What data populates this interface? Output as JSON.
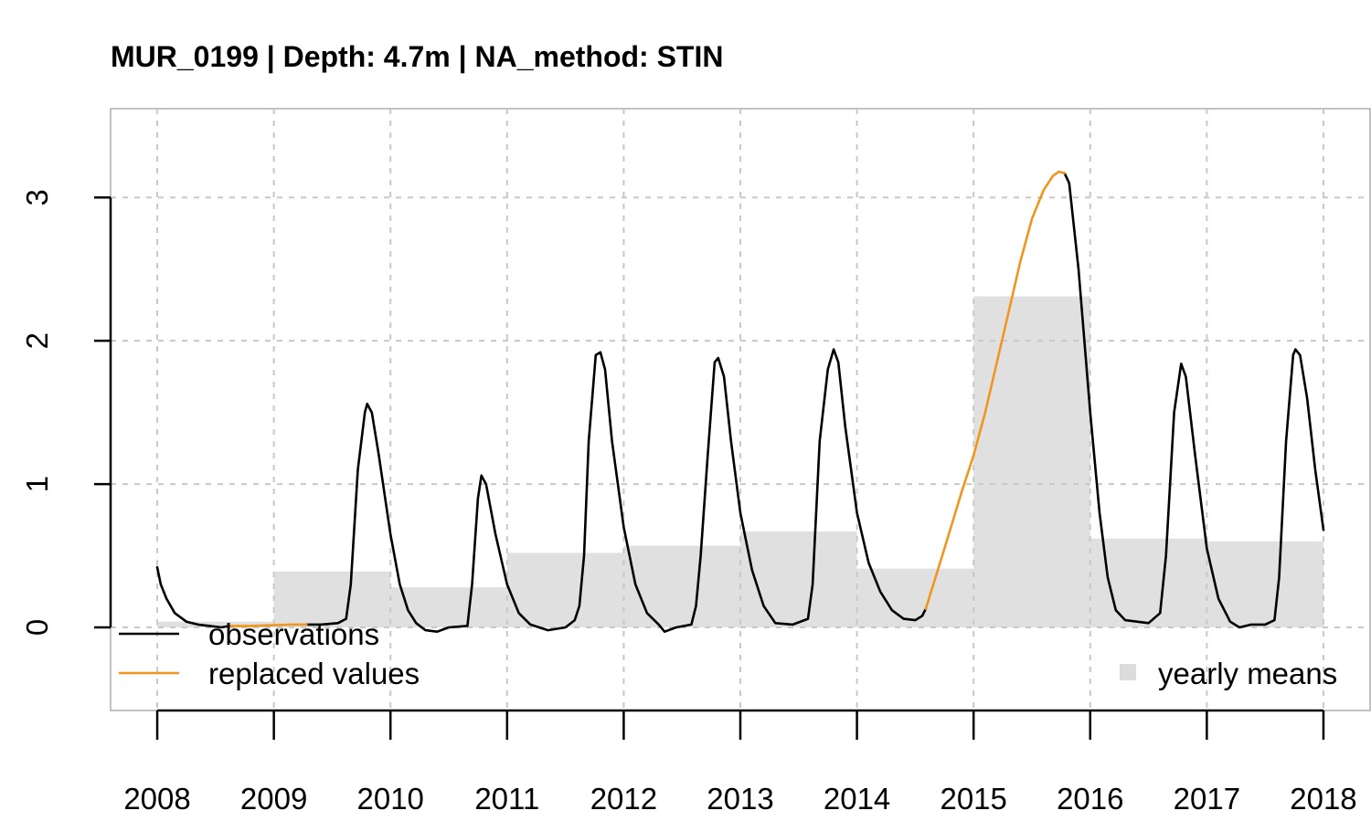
{
  "chart_data": {
    "type": "line",
    "title": "MUR_0199 | Depth: 4.7m | NA_method: STIN",
    "xlabel": "",
    "ylabel": "",
    "x_ticks": [
      "2008",
      "2009",
      "2010",
      "2011",
      "2012",
      "2013",
      "2014",
      "2015",
      "2016",
      "2017",
      "2018"
    ],
    "y_ticks": [
      "0",
      "1",
      "2",
      "3"
    ],
    "xlim": [
      2007.6,
      2018.4
    ],
    "ylim": [
      -0.58,
      3.62
    ],
    "grid": true,
    "legend_left": {
      "position": "bottom-left",
      "entries": [
        {
          "label": "observations",
          "color": "#000000"
        },
        {
          "label": "replaced values",
          "color": "#f0961e"
        }
      ]
    },
    "legend_right": {
      "position": "bottom-right",
      "entries": [
        {
          "label": "yearly means",
          "color": "#dcdcdc"
        }
      ]
    },
    "yearly_means": {
      "color": "#e0e0e0",
      "bars": [
        {
          "start": 2008,
          "end": 2009,
          "value": 0.04
        },
        {
          "start": 2009,
          "end": 2010,
          "value": 0.39
        },
        {
          "start": 2010,
          "end": 2011,
          "value": 0.28
        },
        {
          "start": 2011,
          "end": 2012,
          "value": 0.52
        },
        {
          "start": 2012,
          "end": 2013,
          "value": 0.57
        },
        {
          "start": 2013,
          "end": 2014,
          "value": 0.67
        },
        {
          "start": 2014,
          "end": 2015,
          "value": 0.41
        },
        {
          "start": 2015,
          "end": 2016,
          "value": 2.31
        },
        {
          "start": 2016,
          "end": 2017,
          "value": 0.62
        },
        {
          "start": 2017,
          "end": 2018,
          "value": 0.6
        }
      ]
    },
    "series": [
      {
        "name": "observations",
        "color": "#000000",
        "segments": [
          [
            [
              2008.0,
              0.42
            ],
            [
              2008.03,
              0.3
            ],
            [
              2008.08,
              0.2
            ],
            [
              2008.15,
              0.1
            ],
            [
              2008.25,
              0.04
            ],
            [
              2008.35,
              0.02
            ],
            [
              2008.45,
              0.01
            ],
            [
              2008.55,
              0.0
            ],
            [
              2008.62,
              0.01
            ]
          ],
          [
            [
              2009.28,
              0.02
            ],
            [
              2009.4,
              0.02
            ],
            [
              2009.55,
              0.03
            ],
            [
              2009.62,
              0.06
            ],
            [
              2009.66,
              0.3
            ],
            [
              2009.72,
              1.1
            ],
            [
              2009.78,
              1.5
            ],
            [
              2009.8,
              1.56
            ],
            [
              2009.84,
              1.5
            ],
            [
              2009.9,
              1.2
            ],
            [
              2010.0,
              0.65
            ],
            [
              2010.08,
              0.3
            ],
            [
              2010.15,
              0.12
            ],
            [
              2010.22,
              0.03
            ],
            [
              2010.3,
              -0.02
            ],
            [
              2010.4,
              -0.03
            ],
            [
              2010.5,
              0.0
            ],
            [
              2010.66,
              0.01
            ],
            [
              2010.7,
              0.3
            ],
            [
              2010.75,
              0.9
            ],
            [
              2010.78,
              1.06
            ],
            [
              2010.82,
              1.0
            ],
            [
              2010.9,
              0.65
            ],
            [
              2011.0,
              0.3
            ],
            [
              2011.1,
              0.1
            ],
            [
              2011.2,
              0.02
            ],
            [
              2011.35,
              -0.02
            ],
            [
              2011.5,
              0.0
            ],
            [
              2011.58,
              0.05
            ],
            [
              2011.62,
              0.15
            ],
            [
              2011.66,
              0.5
            ],
            [
              2011.7,
              1.3
            ],
            [
              2011.76,
              1.9
            ],
            [
              2011.8,
              1.92
            ],
            [
              2011.84,
              1.8
            ],
            [
              2011.9,
              1.3
            ],
            [
              2012.0,
              0.7
            ],
            [
              2012.1,
              0.3
            ],
            [
              2012.2,
              0.1
            ],
            [
              2012.3,
              0.02
            ],
            [
              2012.35,
              -0.03
            ],
            [
              2012.45,
              0.0
            ],
            [
              2012.58,
              0.02
            ],
            [
              2012.62,
              0.15
            ],
            [
              2012.66,
              0.5
            ],
            [
              2012.72,
              1.2
            ],
            [
              2012.78,
              1.85
            ],
            [
              2012.81,
              1.88
            ],
            [
              2012.86,
              1.75
            ],
            [
              2012.92,
              1.3
            ],
            [
              2013.0,
              0.8
            ],
            [
              2013.1,
              0.4
            ],
            [
              2013.2,
              0.15
            ],
            [
              2013.3,
              0.03
            ],
            [
              2013.45,
              0.02
            ],
            [
              2013.58,
              0.06
            ],
            [
              2013.62,
              0.3
            ],
            [
              2013.68,
              1.3
            ],
            [
              2013.75,
              1.8
            ],
            [
              2013.8,
              1.94
            ],
            [
              2013.84,
              1.85
            ],
            [
              2013.9,
              1.4
            ],
            [
              2014.0,
              0.8
            ],
            [
              2014.1,
              0.45
            ],
            [
              2014.2,
              0.25
            ],
            [
              2014.3,
              0.12
            ],
            [
              2014.4,
              0.06
            ],
            [
              2014.5,
              0.05
            ],
            [
              2014.56,
              0.08
            ],
            [
              2014.59,
              0.13
            ]
          ],
          [
            [
              2015.78,
              3.17
            ],
            [
              2015.82,
              3.1
            ],
            [
              2015.9,
              2.5
            ],
            [
              2016.0,
              1.5
            ],
            [
              2016.08,
              0.8
            ],
            [
              2016.15,
              0.35
            ],
            [
              2016.22,
              0.12
            ],
            [
              2016.3,
              0.05
            ],
            [
              2016.4,
              0.04
            ],
            [
              2016.5,
              0.03
            ],
            [
              2016.6,
              0.1
            ],
            [
              2016.65,
              0.5
            ],
            [
              2016.72,
              1.5
            ],
            [
              2016.78,
              1.84
            ],
            [
              2016.82,
              1.75
            ],
            [
              2016.9,
              1.2
            ],
            [
              2017.0,
              0.55
            ],
            [
              2017.1,
              0.2
            ],
            [
              2017.2,
              0.04
            ],
            [
              2017.28,
              0.0
            ],
            [
              2017.38,
              0.02
            ],
            [
              2017.5,
              0.02
            ],
            [
              2017.58,
              0.05
            ],
            [
              2017.62,
              0.35
            ],
            [
              2017.68,
              1.3
            ],
            [
              2017.74,
              1.9
            ],
            [
              2017.76,
              1.94
            ],
            [
              2017.8,
              1.9
            ],
            [
              2017.86,
              1.6
            ],
            [
              2017.93,
              1.1
            ],
            [
              2018.0,
              0.68
            ]
          ]
        ]
      },
      {
        "name": "replaced values",
        "color": "#f0961e",
        "segments": [
          [
            [
              2008.62,
              0.01
            ],
            [
              2008.8,
              0.01
            ],
            [
              2009.0,
              0.015
            ],
            [
              2009.15,
              0.02
            ],
            [
              2009.28,
              0.02
            ]
          ],
          [
            [
              2014.59,
              0.13
            ],
            [
              2014.75,
              0.55
            ],
            [
              2014.9,
              0.95
            ],
            [
              2015.0,
              1.2
            ],
            [
              2015.1,
              1.5
            ],
            [
              2015.2,
              1.85
            ],
            [
              2015.3,
              2.2
            ],
            [
              2015.4,
              2.55
            ],
            [
              2015.5,
              2.85
            ],
            [
              2015.6,
              3.05
            ],
            [
              2015.68,
              3.15
            ],
            [
              2015.73,
              3.18
            ],
            [
              2015.78,
              3.17
            ]
          ]
        ]
      }
    ]
  }
}
